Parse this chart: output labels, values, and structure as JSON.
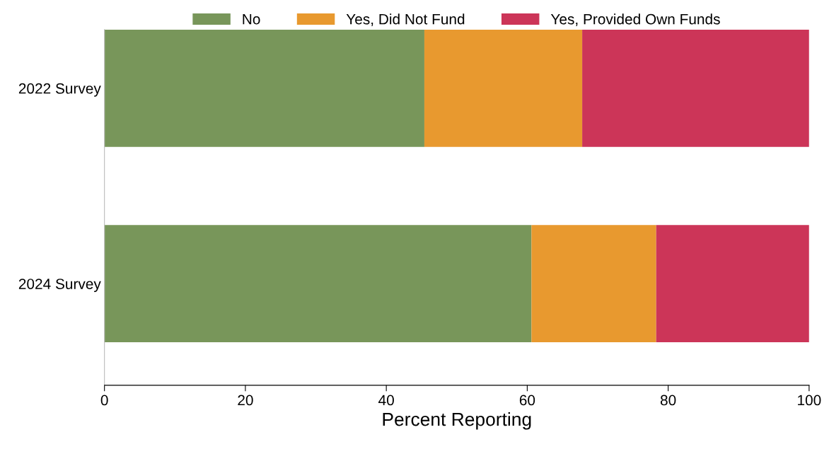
{
  "chart_data": {
    "type": "bar",
    "orientation": "horizontal",
    "stacked": true,
    "categories": [
      "2022 Survey",
      "2024 Survey"
    ],
    "series": [
      {
        "name": "No",
        "color": "#78965a",
        "values": [
          45.4,
          60.6
        ]
      },
      {
        "name": "Yes, Did Not Fund",
        "color": "#e8992f",
        "values": [
          22.4,
          17.7
        ]
      },
      {
        "name": "Yes, Provided Own Funds",
        "color": "#cc3558",
        "values": [
          32.2,
          21.7
        ]
      }
    ],
    "xlabel": "Percent Reporting",
    "xlim": [
      0,
      100
    ],
    "xticks": [
      0,
      20,
      40,
      60,
      80,
      100
    ],
    "legend": "top",
    "grid": false
  }
}
